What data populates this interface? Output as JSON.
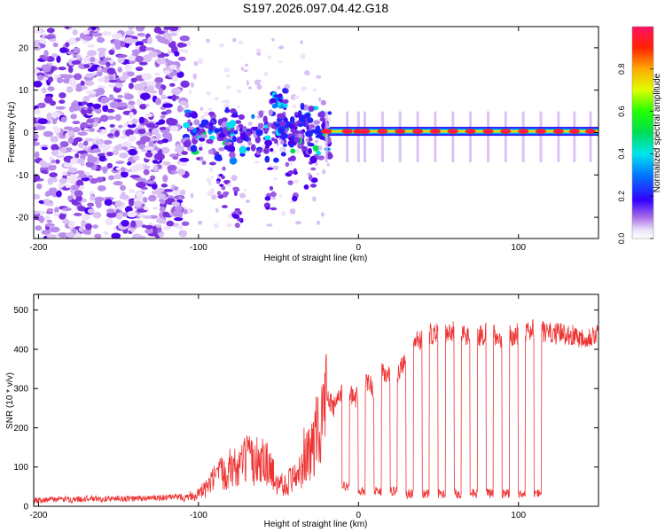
{
  "title": "S197.2026.097.04.42.G18",
  "chart_data": [
    {
      "type": "heatmap",
      "xlabel": "Height of straight line (km)",
      "ylabel": "Frequency (Hz)",
      "xlim": [
        -203,
        150
      ],
      "ylim": [
        -25,
        25
      ],
      "xticks": [
        -200,
        -100,
        0,
        100
      ],
      "yticks": [
        -20,
        -10,
        0,
        10,
        20
      ],
      "colorbar": {
        "label": "Normalized spectral amplitude",
        "range": [
          0,
          1
        ],
        "ticks": [
          "0.0",
          "0.2",
          "0.4",
          "0.6",
          "0.8"
        ]
      },
      "description_values": {
        "noise_region_km": [
          -203,
          -108
        ],
        "transition_region_km": [
          -108,
          -18
        ],
        "stable_tone_start_km": -18,
        "tone_frequency_hz": 0.3,
        "tone_peaks_km": [
          -20,
          -7,
          0,
          4,
          15,
          26,
          37,
          48,
          59,
          70,
          81,
          92,
          103,
          114,
          125,
          135,
          145
        ]
      }
    },
    {
      "type": "line",
      "xlabel": "Height of straight line (km)",
      "ylabel": "SNR (10 * v/v)",
      "xlim": [
        -203,
        150
      ],
      "ylim": [
        0,
        540
      ],
      "xticks": [
        -200,
        -100,
        0,
        100
      ],
      "yticks": [
        0,
        100,
        200,
        300,
        400,
        500
      ],
      "color": "#ee3333",
      "series": [
        {
          "name": "SNR",
          "points": [
            [
              -203,
              15
            ],
            [
              -190,
              18
            ],
            [
              -180,
              17
            ],
            [
              -170,
              20
            ],
            [
              -160,
              18
            ],
            [
              -150,
              20
            ],
            [
              -140,
              19
            ],
            [
              -130,
              21
            ],
            [
              -120,
              22
            ],
            [
              -110,
              24
            ],
            [
              -100,
              30
            ],
            [
              -95,
              45
            ],
            [
              -90,
              70
            ],
            [
              -85,
              85
            ],
            [
              -80,
              100
            ],
            [
              -75,
              95
            ],
            [
              -70,
              120
            ],
            [
              -65,
              110
            ],
            [
              -60,
              130
            ],
            [
              -55,
              90
            ],
            [
              -50,
              60
            ],
            [
              -45,
              55
            ],
            [
              -40,
              80
            ],
            [
              -35,
              100
            ],
            [
              -30,
              140
            ],
            [
              -25,
              200
            ],
            [
              -20,
              280
            ],
            [
              -15,
              250
            ],
            [
              -10,
              300
            ],
            [
              -5,
              280
            ],
            [
              0,
              280
            ],
            [
              5,
              320
            ],
            [
              10,
              300
            ],
            [
              15,
              340
            ],
            [
              20,
              330
            ],
            [
              25,
              340
            ],
            [
              30,
              370
            ],
            [
              35,
              420
            ],
            [
              40,
              430
            ],
            [
              45,
              440
            ],
            [
              50,
              440
            ],
            [
              60,
              445
            ],
            [
              70,
              430
            ],
            [
              80,
              440
            ],
            [
              90,
              430
            ],
            [
              100,
              440
            ],
            [
              110,
              450
            ],
            [
              120,
              440
            ],
            [
              130,
              440
            ],
            [
              140,
              430
            ],
            [
              150,
              440
            ]
          ],
          "dropouts": [
            {
              "x": -8,
              "min": 40
            },
            {
              "x": 2,
              "min": 25
            },
            {
              "x": 12,
              "min": 25
            },
            {
              "x": 22,
              "min": 25
            },
            {
              "x": 32,
              "min": 20
            },
            {
              "x": 42,
              "min": 20
            },
            {
              "x": 52,
              "min": 20
            },
            {
              "x": 62,
              "min": 20
            },
            {
              "x": 72,
              "min": 20
            },
            {
              "x": 82,
              "min": 20
            },
            {
              "x": 92,
              "min": 20
            },
            {
              "x": 102,
              "min": 20
            },
            {
              "x": 112,
              "min": 20
            }
          ]
        }
      ]
    }
  ]
}
